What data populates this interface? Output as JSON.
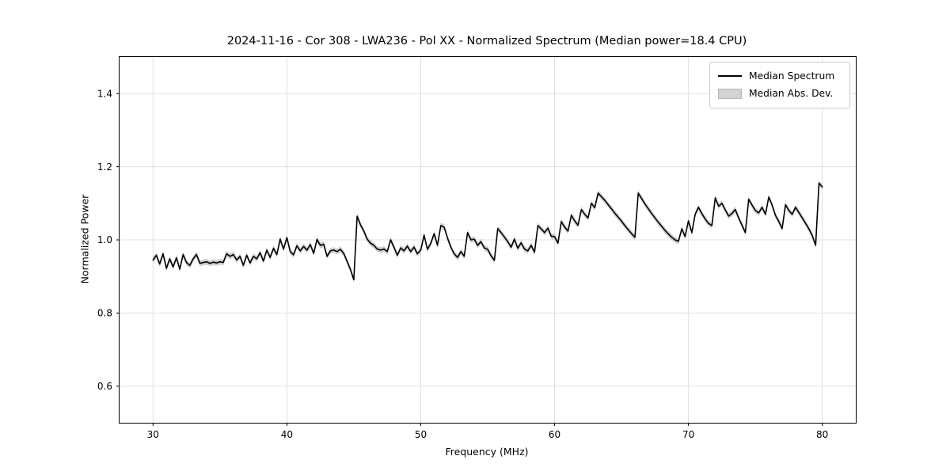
{
  "figure": {
    "background": "#ffffff"
  },
  "legend": [
    {
      "label": "Median Spectrum",
      "swatch": "line",
      "color": "#000000"
    },
    {
      "label": "Median Abs. Dev.",
      "swatch": "patch",
      "color": "#d3d3d3"
    }
  ],
  "chart_data": {
    "type": "line",
    "title": "2024-11-16 - Cor 308 - LWA236 - Pol XX - Normalized Spectrum (Median power=18.4 CPU)",
    "xlabel": "Frequency (MHz)",
    "ylabel": "Normalized Power",
    "xlim": [
      27.5,
      82.5
    ],
    "ylim": [
      0.5,
      1.5
    ],
    "x_ticks": [
      30,
      40,
      50,
      60,
      70,
      80
    ],
    "y_ticks": [
      0.6,
      0.8,
      1.0,
      1.2,
      1.4
    ],
    "grid": true,
    "grid_color": "#e0e0e0",
    "spine_color": "#000000",
    "legend_position": "upper right",
    "series": [
      {
        "name": "Median Spectrum",
        "color": "#000000",
        "line_width": 1.6,
        "x_start": 30.0,
        "x_step": 0.25,
        "y": [
          0.945,
          0.958,
          0.934,
          0.962,
          0.922,
          0.948,
          0.926,
          0.951,
          0.92,
          0.96,
          0.938,
          0.93,
          0.948,
          0.96,
          0.936,
          0.938,
          0.94,
          0.936,
          0.939,
          0.937,
          0.94,
          0.938,
          0.962,
          0.955,
          0.96,
          0.945,
          0.955,
          0.93,
          0.958,
          0.937,
          0.955,
          0.948,
          0.965,
          0.942,
          0.972,
          0.952,
          0.977,
          0.96,
          1.002,
          0.975,
          1.006,
          0.968,
          0.959,
          0.984,
          0.97,
          0.982,
          0.972,
          0.987,
          0.963,
          1.001,
          0.985,
          0.988,
          0.955,
          0.97,
          0.972,
          0.968,
          0.974,
          0.963,
          0.941,
          0.919,
          0.891,
          1.065,
          1.041,
          1.024,
          1.002,
          0.991,
          0.985,
          0.975,
          0.972,
          0.975,
          0.968,
          1.0,
          0.98,
          0.958,
          0.978,
          0.97,
          0.983,
          0.968,
          0.98,
          0.962,
          0.972,
          1.013,
          0.974,
          0.99,
          1.017,
          0.985,
          1.039,
          1.035,
          1.005,
          0.98,
          0.962,
          0.952,
          0.968,
          0.955,
          1.02,
          1.0,
          1.002,
          0.985,
          0.995,
          0.978,
          0.974,
          0.957,
          0.944,
          1.031,
          1.02,
          1.008,
          0.995,
          0.98,
          1.002,
          0.977,
          0.992,
          0.975,
          0.97,
          0.985,
          0.966,
          1.039,
          1.03,
          1.02,
          1.032,
          1.01,
          1.009,
          0.991,
          1.05,
          1.035,
          1.024,
          1.067,
          1.052,
          1.04,
          1.083,
          1.07,
          1.06,
          1.1,
          1.088,
          1.128,
          1.118,
          1.108,
          1.096,
          1.085,
          1.073,
          1.062,
          1.051,
          1.039,
          1.028,
          1.017,
          1.007,
          1.128,
          1.113,
          1.098,
          1.085,
          1.072,
          1.06,
          1.048,
          1.037,
          1.026,
          1.016,
          1.007,
          1.0,
          0.996,
          1.03,
          1.009,
          1.052,
          1.02,
          1.07,
          1.089,
          1.072,
          1.057,
          1.045,
          1.039,
          1.115,
          1.092,
          1.1,
          1.082,
          1.065,
          1.072,
          1.083,
          1.06,
          1.04,
          1.02,
          1.111,
          1.095,
          1.08,
          1.074,
          1.089,
          1.07,
          1.117,
          1.095,
          1.067,
          1.05,
          1.031,
          1.096,
          1.08,
          1.07,
          1.089,
          1.075,
          1.06,
          1.045,
          1.03,
          1.012,
          0.985,
          1.155,
          1.145
        ]
      },
      {
        "name": "Median Abs. Dev.",
        "color": "#c9c9c9",
        "band_halfwidth": 0.008
      }
    ]
  }
}
